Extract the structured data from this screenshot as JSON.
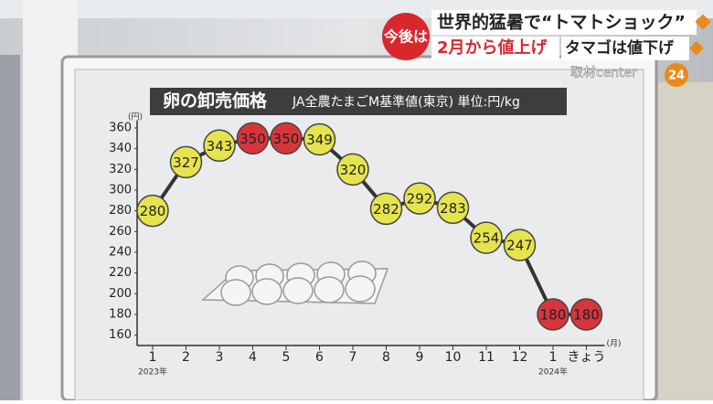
{
  "overlay": {
    "badge": "今後は",
    "headline1": "世界的猛暑で“トマトショック”",
    "headline2a": "2月から値上げ",
    "headline2b": "タマゴは値下げ",
    "logo": "取材center",
    "logo_num": "24"
  },
  "chart_data": {
    "type": "line",
    "title": "卵の卸売価格",
    "subtitle": "JA全農たまごM基準値(東京) 単位:円/kg",
    "y_unit": "(円)",
    "x_unit": "(月)",
    "year_labels": [
      "2023年",
      "2024年"
    ],
    "categories": [
      "1",
      "2",
      "3",
      "4",
      "5",
      "6",
      "7",
      "8",
      "9",
      "10",
      "11",
      "12",
      "1",
      "きょう"
    ],
    "values": [
      280,
      327,
      343,
      350,
      350,
      349,
      320,
      282,
      292,
      283,
      254,
      247,
      180,
      180
    ],
    "color": "#333333",
    "point_colors": [
      "#e6e44e",
      "#e6e44e",
      "#e6e44e",
      "#d8353b",
      "#d8353b",
      "#e6e44e",
      "#e6e44e",
      "#e6e44e",
      "#e6e44e",
      "#e6e44e",
      "#e6e44e",
      "#e6e44e",
      "#d8353b",
      "#d8353b"
    ],
    "ylim": [
      150,
      360
    ],
    "yticks": [
      160,
      180,
      200,
      220,
      240,
      260,
      280,
      300,
      320,
      340,
      360
    ]
  }
}
